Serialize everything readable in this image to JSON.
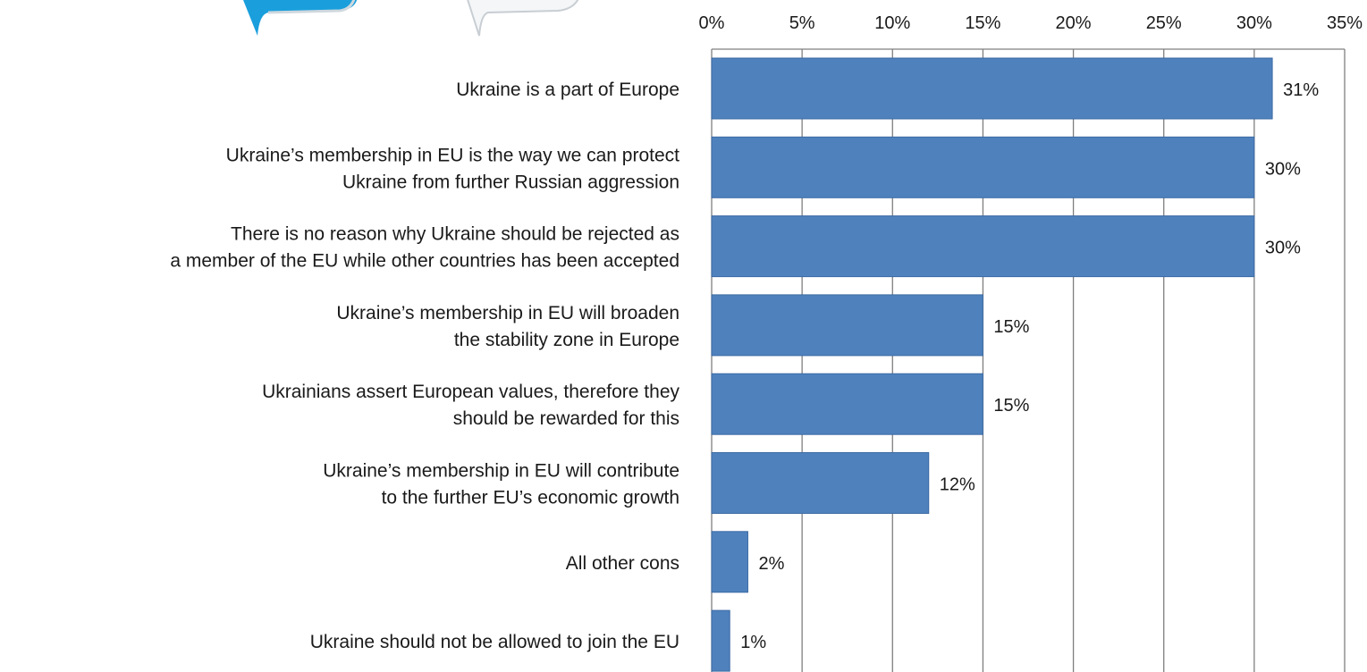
{
  "chart_data": {
    "type": "bar",
    "orientation": "horizontal",
    "categories": [
      [
        "Ukraine is a part of Europe"
      ],
      [
        "Ukraine’s membership in EU is the way we can protect",
        "Ukraine from further Russian aggression"
      ],
      [
        "There is no reason why Ukraine should be rejected as",
        "a member of the EU while other countries has been accepted"
      ],
      [
        "Ukraine’s membership in EU will broaden",
        "the stability zone in Europe"
      ],
      [
        "Ukrainians assert European values, therefore they",
        "should be rewarded for this"
      ],
      [
        "Ukraine’s membership in EU will contribute",
        "to the further EU’s economic growth"
      ],
      [
        "All other cons"
      ],
      [
        "Ukraine should not be allowed to join the EU"
      ]
    ],
    "values": [
      31,
      30,
      30,
      15,
      15,
      12,
      2,
      1
    ],
    "data_labels": [
      "31%",
      "30%",
      "30%",
      "15%",
      "15%",
      "12%",
      "2%",
      "1%"
    ],
    "x_ticks": [
      "0%",
      "5%",
      "10%",
      "15%",
      "20%",
      "25%",
      "30%",
      "35%"
    ],
    "xlim": [
      0,
      35
    ],
    "x_axis_position": "top",
    "grid": true,
    "bar_color": "#4f81bd",
    "grid_color": "#7f7f7f"
  }
}
